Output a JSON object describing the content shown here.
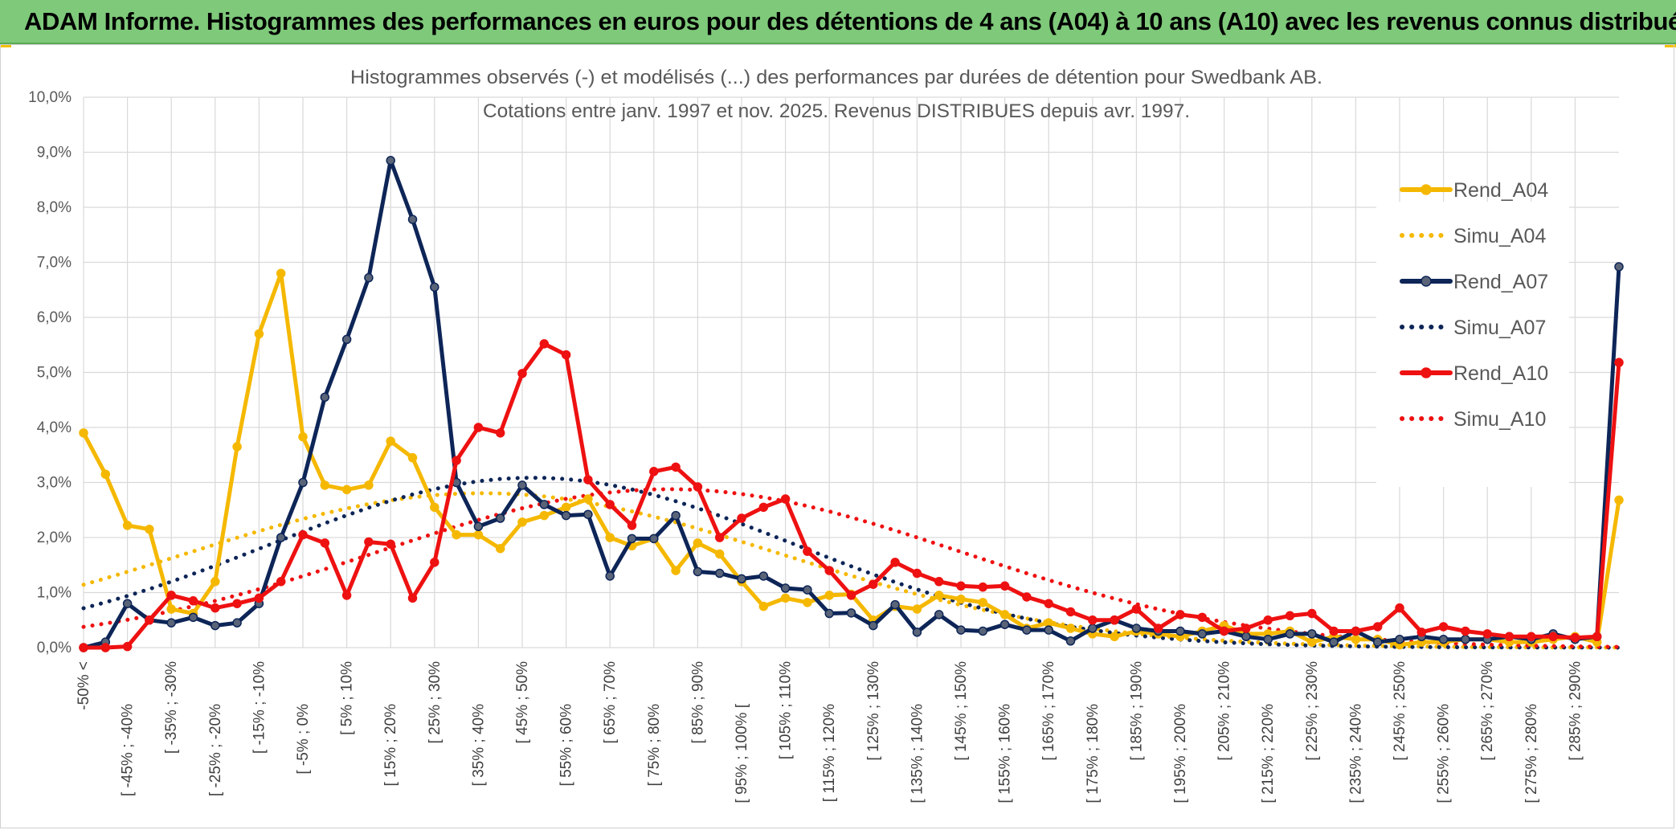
{
  "banner": {
    "title": "ADAM Informe. Histogrammes des performances en euros pour des détentions de 4 ans (A04) à 10 ans (A10) avec les revenus connus distribués"
  },
  "chart_data": {
    "type": "line",
    "title": "Histogrammes observés (-) et modélisés (...) des performances par durées de détention pour Swedbank AB.",
    "subtitle": "Cotations entre janv. 1997 et nov. 2025. Revenus DISTRIBUES depuis avr. 1997.",
    "xlabel": "",
    "ylabel": "",
    "ylim": [
      0,
      10
    ],
    "y_ticks": [
      "0,0%",
      "1,0%",
      "2,0%",
      "3,0%",
      "4,0%",
      "5,0%",
      "6,0%",
      "7,0%",
      "8,0%",
      "9,0%",
      "10,0%"
    ],
    "grid": true,
    "legend_position": "right",
    "x_labels": [
      "-50% <",
      "[ -45% ; -40%",
      "[ -35% ; -30%",
      "[ -25% ; -20%",
      "[ -15% ; -10%",
      "[ -5% ; 0%",
      "[ 5% ; 10%",
      "[ 15% ; 20%",
      "[ 25% ; 30%",
      "[ 35% ; 40%",
      "[ 45% ; 50%",
      "[ 55% ; 60%",
      "[ 65% ; 70%",
      "[ 75% ; 80%",
      "[ 85% ; 90%",
      "[ 95% ; 100% [",
      "[ 105% ; 110%",
      "[ 115% ; 120%",
      "[ 125% ; 130%",
      "[ 135% ; 140%",
      "[ 145% ; 150%",
      "[ 155% ; 160%",
      "[ 165% ; 170%",
      "[ 175% ; 180%",
      "[ 185% ; 190%",
      "[ 195% ; 200%",
      "[ 205% ; 210%",
      "[ 215% ; 220%",
      "[ 225% ; 230%",
      "[ 235% ; 240%",
      "[ 245% ; 250%",
      "[ 255% ; 260%",
      "[ 265% ; 270%",
      "[ 275% ; 280%",
      "[ 285% ; 290%"
    ],
    "series": [
      {
        "name": "Rend_A04",
        "color": "#f5b800",
        "style": "solid",
        "markers": true,
        "values": [
          3.9,
          3.15,
          2.22,
          2.15,
          0.7,
          0.62,
          1.2,
          3.65,
          5.7,
          6.8,
          3.83,
          2.95,
          2.87,
          2.95,
          3.75,
          3.45,
          2.55,
          2.05,
          2.05,
          1.8,
          2.28,
          2.4,
          2.55,
          2.7,
          2.0,
          1.85,
          1.98,
          1.4,
          1.9,
          1.7,
          1.2,
          0.75,
          0.9,
          0.82,
          0.95,
          0.97,
          0.5,
          0.75,
          0.7,
          0.95,
          0.88,
          0.82,
          0.6,
          0.35,
          0.45,
          0.35,
          0.25,
          0.2,
          0.3,
          0.25,
          0.2,
          0.3,
          0.4,
          0.25,
          0.25,
          0.3,
          0.1,
          0.2,
          0.15,
          0.15,
          0.05,
          0.1,
          0.1,
          0.15,
          0.15,
          0.1,
          0.1,
          0.15,
          0.2,
          0.1,
          2.68
        ]
      },
      {
        "name": "Simu_A04",
        "color": "#f5b800",
        "style": "dotted",
        "markers": false,
        "values": "model"
      },
      {
        "name": "Rend_A07",
        "color": "#0d2557",
        "style": "solid",
        "markers": true,
        "values": [
          0.0,
          0.1,
          0.8,
          0.5,
          0.45,
          0.55,
          0.4,
          0.45,
          0.8,
          2.0,
          3.0,
          4.55,
          5.6,
          6.72,
          8.85,
          7.78,
          6.55,
          3.0,
          2.2,
          2.35,
          2.95,
          2.6,
          2.4,
          2.42,
          1.3,
          1.98,
          1.98,
          2.4,
          1.38,
          1.35,
          1.25,
          1.3,
          1.08,
          1.05,
          0.62,
          0.63,
          0.4,
          0.78,
          0.28,
          0.6,
          0.32,
          0.3,
          0.42,
          0.32,
          0.32,
          0.12,
          0.35,
          0.5,
          0.35,
          0.3,
          0.3,
          0.25,
          0.3,
          0.2,
          0.15,
          0.25,
          0.25,
          0.1,
          0.3,
          0.1,
          0.15,
          0.2,
          0.15,
          0.15,
          0.15,
          0.2,
          0.15,
          0.25,
          0.15,
          0.2,
          6.92
        ]
      },
      {
        "name": "Simu_A07",
        "color": "#0d2557",
        "style": "dotted",
        "markers": false,
        "values": "model"
      },
      {
        "name": "Rend_A10",
        "color": "#ee1111",
        "style": "solid",
        "markers": true,
        "values": [
          0.0,
          0.0,
          0.02,
          0.5,
          0.95,
          0.85,
          0.72,
          0.8,
          0.9,
          1.2,
          2.05,
          1.9,
          0.95,
          1.92,
          1.88,
          0.9,
          1.55,
          3.4,
          4.0,
          3.9,
          4.98,
          5.52,
          5.32,
          3.05,
          2.6,
          2.22,
          3.2,
          3.28,
          2.92,
          2.0,
          2.35,
          2.55,
          2.7,
          1.75,
          1.4,
          0.95,
          1.15,
          1.55,
          1.35,
          1.2,
          1.12,
          1.1,
          1.12,
          0.92,
          0.8,
          0.65,
          0.5,
          0.5,
          0.7,
          0.35,
          0.6,
          0.55,
          0.3,
          0.35,
          0.5,
          0.58,
          0.62,
          0.3,
          0.3,
          0.38,
          0.72,
          0.28,
          0.38,
          0.3,
          0.25,
          0.2,
          0.2,
          0.2,
          0.18,
          0.2,
          5.18
        ]
      },
      {
        "name": "Simu_A10",
        "color": "#ee1111",
        "style": "dotted",
        "markers": false,
        "values": "model"
      }
    ]
  }
}
